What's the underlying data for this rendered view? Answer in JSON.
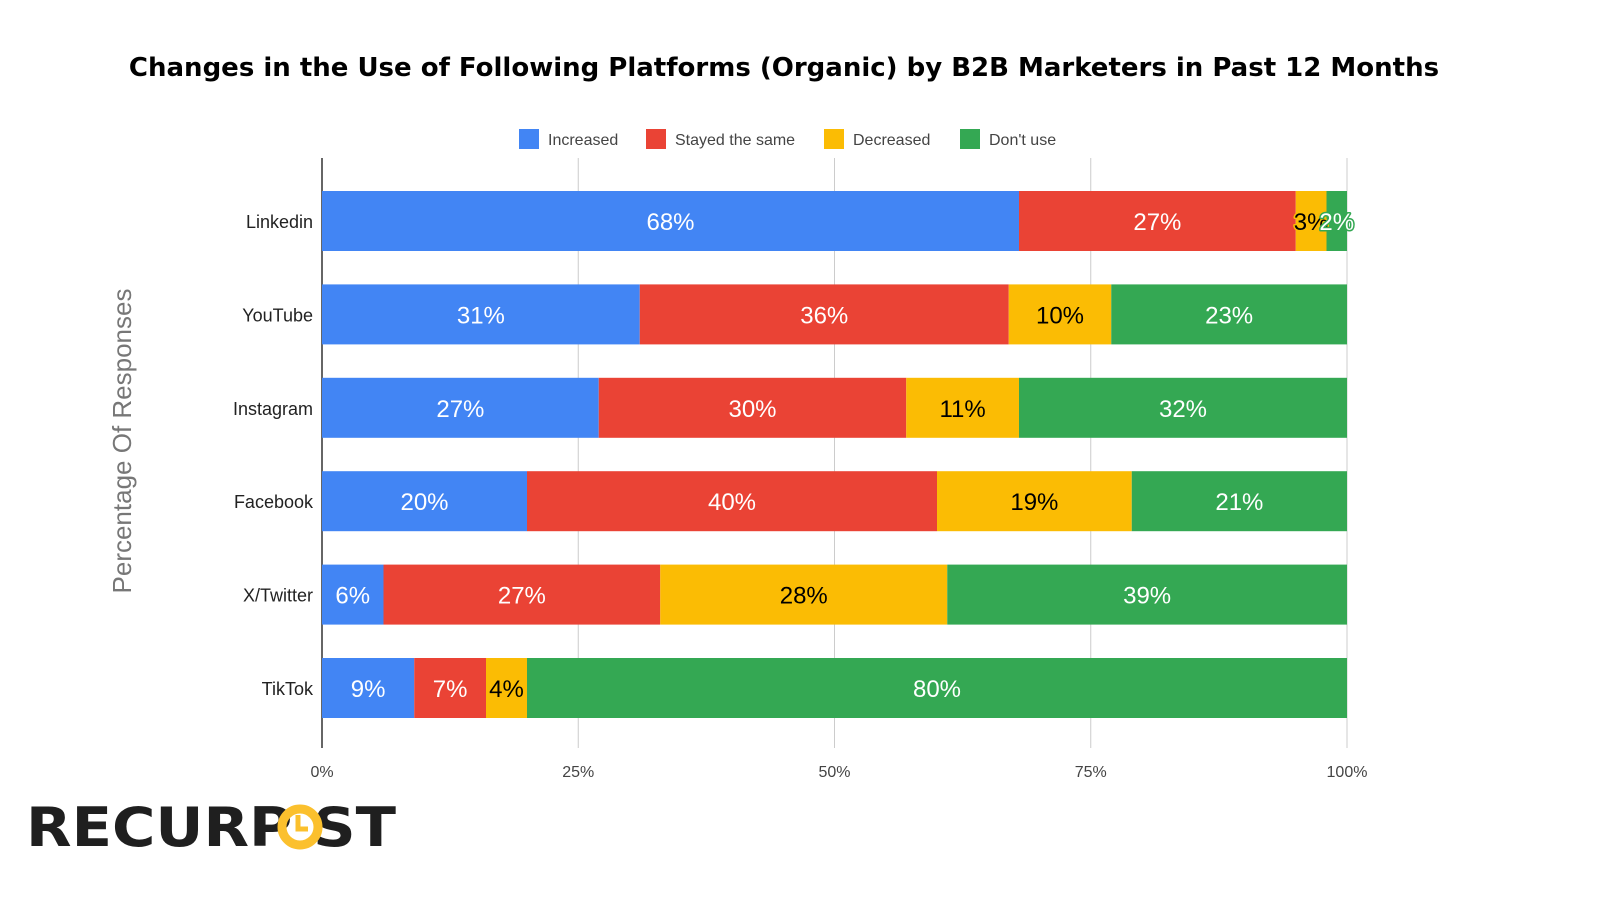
{
  "chart_data": {
    "type": "bar",
    "orientation": "horizontal",
    "stacked": true,
    "title": "Changes in the Use of Following Platforms (Organic) by B2B Marketers in Past 12 Months",
    "ylabel": "Percentage Of Responses",
    "xlabel": "",
    "xlim": [
      0,
      100
    ],
    "x_ticks": [
      "0%",
      "25%",
      "50%",
      "75%",
      "100%"
    ],
    "grid": true,
    "legend_position": "top",
    "categories": [
      "Linkedin",
      "YouTube",
      "Instagram",
      "Facebook",
      "X/Twitter",
      "TikTok"
    ],
    "series": [
      {
        "name": "Increased",
        "color": "#4285F4",
        "label_color": "#ffffff",
        "values": [
          68,
          31,
          27,
          20,
          6,
          9
        ]
      },
      {
        "name": "Stayed the same",
        "color": "#EA4335",
        "label_color": "#ffffff",
        "values": [
          27,
          36,
          30,
          40,
          27,
          7
        ]
      },
      {
        "name": "Decreased",
        "color": "#FBBC04",
        "label_color": "#000000",
        "values": [
          3,
          10,
          11,
          19,
          28,
          4
        ]
      },
      {
        "name": "Don't use",
        "color": "#34A853",
        "label_color": "#ffffff",
        "values": [
          2,
          23,
          32,
          21,
          39,
          80
        ]
      }
    ],
    "value_suffix": "%"
  },
  "logo": {
    "text": "RECURPOST",
    "colors": {
      "text": "#1f1f1f",
      "accent": "#FBC02D"
    }
  }
}
